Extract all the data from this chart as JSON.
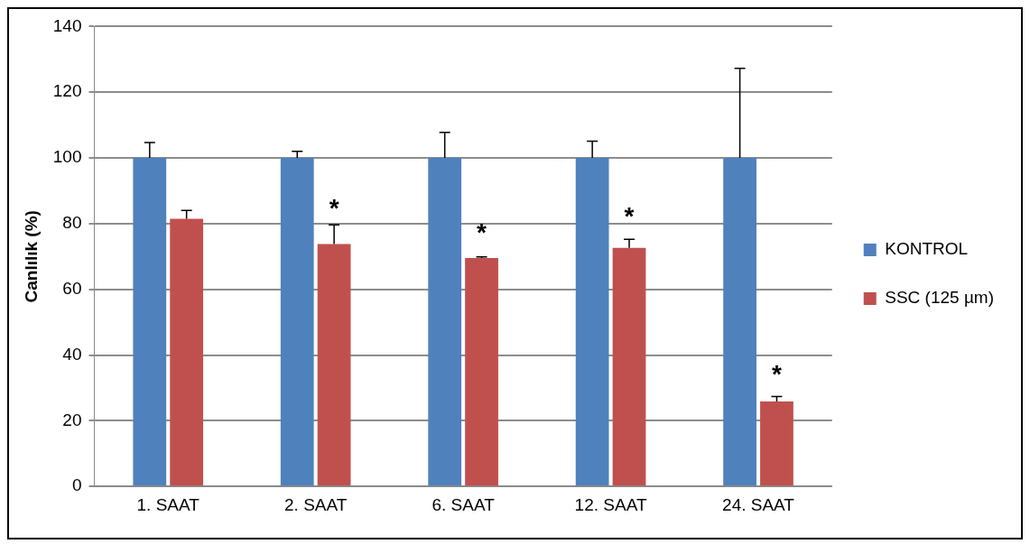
{
  "chart_data": {
    "type": "bar",
    "ylabel": "Canlılık (%)",
    "categories": [
      "1. SAAT",
      "2. SAAT",
      "6. SAAT",
      "12. SAAT",
      "24. SAAT"
    ],
    "series": [
      {
        "name": "KONTROL",
        "color": "#4f81bd",
        "values": [
          100,
          100,
          100,
          100,
          100
        ],
        "errors": [
          [
            100,
            104.7
          ],
          [
            100,
            102
          ],
          [
            100,
            107.8
          ],
          [
            100,
            105.1
          ],
          [
            100,
            127.3
          ]
        ]
      },
      {
        "name": "SSC (125 µm)",
        "color": "#c0504d",
        "values": [
          81.5,
          73.8,
          69.5,
          72.6,
          25.9
        ],
        "errors": [
          [
            81.5,
            84
          ],
          [
            73.8,
            79.6
          ],
          [
            69.5,
            69.9
          ],
          [
            72.6,
            75.2
          ],
          [
            25.9,
            27.4
          ]
        ]
      }
    ],
    "annotations": [
      {
        "text": "*",
        "x": "2. SAAT",
        "y": 86
      },
      {
        "text": "*",
        "x": "6. SAAT",
        "y": 78.6
      },
      {
        "text": "*",
        "x": "12. SAAT",
        "y": 83.5
      },
      {
        "text": "*",
        "x": "24. SAAT",
        "y": 35.3
      }
    ],
    "ylim": [
      0,
      140
    ],
    "yticks": [
      0,
      20,
      40,
      60,
      80,
      100,
      120,
      140
    ],
    "grid": "y",
    "legend": "right"
  }
}
